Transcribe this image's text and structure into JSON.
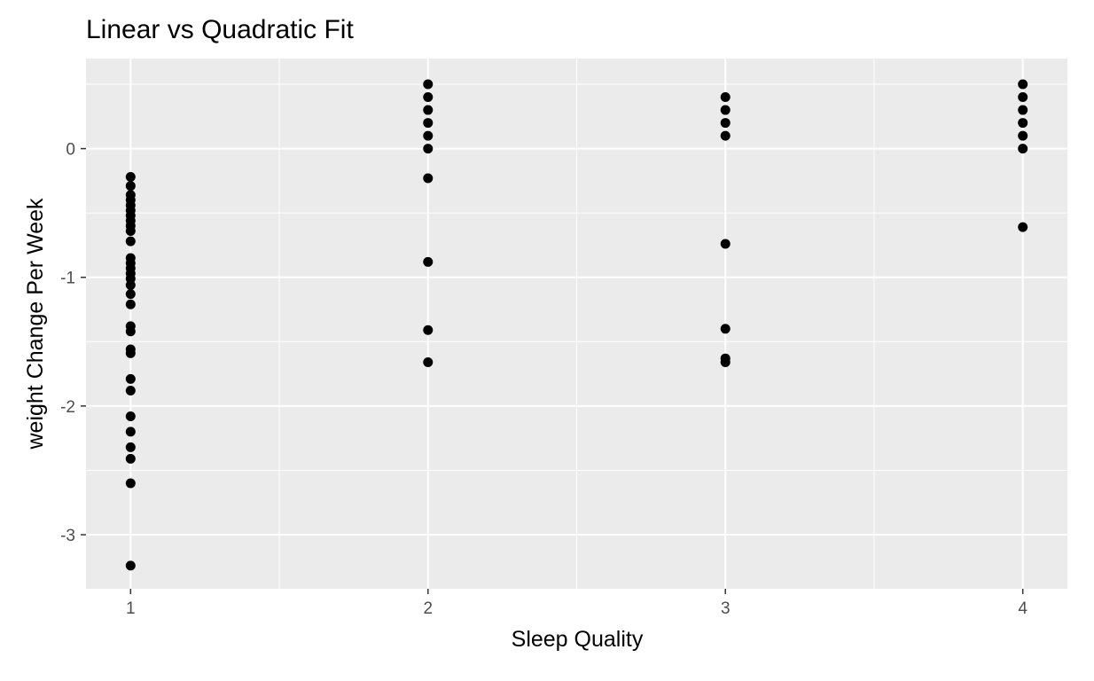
{
  "chart_data": {
    "type": "scatter",
    "title": "Linear vs Quadratic Fit",
    "xlabel": "Sleep Quality",
    "ylabel": "weight Change Per Week",
    "xlim": [
      0.85,
      4.15
    ],
    "ylim": [
      -3.42,
      0.7
    ],
    "x_ticks": [
      1,
      2,
      3,
      4
    ],
    "x_tick_labels": [
      "1",
      "2",
      "3",
      "4"
    ],
    "y_ticks": [
      -3,
      -2,
      -1,
      0
    ],
    "y_tick_labels": [
      "-3",
      "-2",
      "-1",
      "0"
    ],
    "grid": true,
    "legend": "none",
    "colors": {
      "panel_background": "#ebebeb",
      "grid_line": "#ffffff",
      "point": "#000000",
      "tick_mark": "#333333"
    },
    "points": [
      {
        "x": 1,
        "y": -0.22
      },
      {
        "x": 1,
        "y": -0.29
      },
      {
        "x": 1,
        "y": -0.36
      },
      {
        "x": 1,
        "y": -0.4
      },
      {
        "x": 1,
        "y": -0.44
      },
      {
        "x": 1,
        "y": -0.48
      },
      {
        "x": 1,
        "y": -0.52
      },
      {
        "x": 1,
        "y": -0.56
      },
      {
        "x": 1,
        "y": -0.6
      },
      {
        "x": 1,
        "y": -0.64
      },
      {
        "x": 1,
        "y": -0.72
      },
      {
        "x": 1,
        "y": -0.85
      },
      {
        "x": 1,
        "y": -0.89
      },
      {
        "x": 1,
        "y": -0.93
      },
      {
        "x": 1,
        "y": -0.97
      },
      {
        "x": 1,
        "y": -1.01
      },
      {
        "x": 1,
        "y": -1.06
      },
      {
        "x": 1,
        "y": -1.13
      },
      {
        "x": 1,
        "y": -1.21
      },
      {
        "x": 1,
        "y": -1.38
      },
      {
        "x": 1,
        "y": -1.42
      },
      {
        "x": 1,
        "y": -1.56
      },
      {
        "x": 1,
        "y": -1.59
      },
      {
        "x": 1,
        "y": -1.79
      },
      {
        "x": 1,
        "y": -1.88
      },
      {
        "x": 1,
        "y": -2.08
      },
      {
        "x": 1,
        "y": -2.2
      },
      {
        "x": 1,
        "y": -2.32
      },
      {
        "x": 1,
        "y": -2.41
      },
      {
        "x": 1,
        "y": -2.6
      },
      {
        "x": 1,
        "y": -3.24
      },
      {
        "x": 2,
        "y": 0.5
      },
      {
        "x": 2,
        "y": 0.4
      },
      {
        "x": 2,
        "y": 0.3
      },
      {
        "x": 2,
        "y": 0.2
      },
      {
        "x": 2,
        "y": 0.1
      },
      {
        "x": 2,
        "y": 0.0
      },
      {
        "x": 2,
        "y": -0.23
      },
      {
        "x": 2,
        "y": -0.88
      },
      {
        "x": 2,
        "y": -1.41
      },
      {
        "x": 2,
        "y": -1.66
      },
      {
        "x": 3,
        "y": 0.4
      },
      {
        "x": 3,
        "y": 0.3
      },
      {
        "x": 3,
        "y": 0.2
      },
      {
        "x": 3,
        "y": 0.1
      },
      {
        "x": 3,
        "y": -0.74
      },
      {
        "x": 3,
        "y": -1.4
      },
      {
        "x": 3,
        "y": -1.63
      },
      {
        "x": 3,
        "y": -1.66
      },
      {
        "x": 4,
        "y": 0.5
      },
      {
        "x": 4,
        "y": 0.4
      },
      {
        "x": 4,
        "y": 0.3
      },
      {
        "x": 4,
        "y": 0.2
      },
      {
        "x": 4,
        "y": 0.1
      },
      {
        "x": 4,
        "y": 0.0
      },
      {
        "x": 4,
        "y": -0.61
      }
    ]
  }
}
